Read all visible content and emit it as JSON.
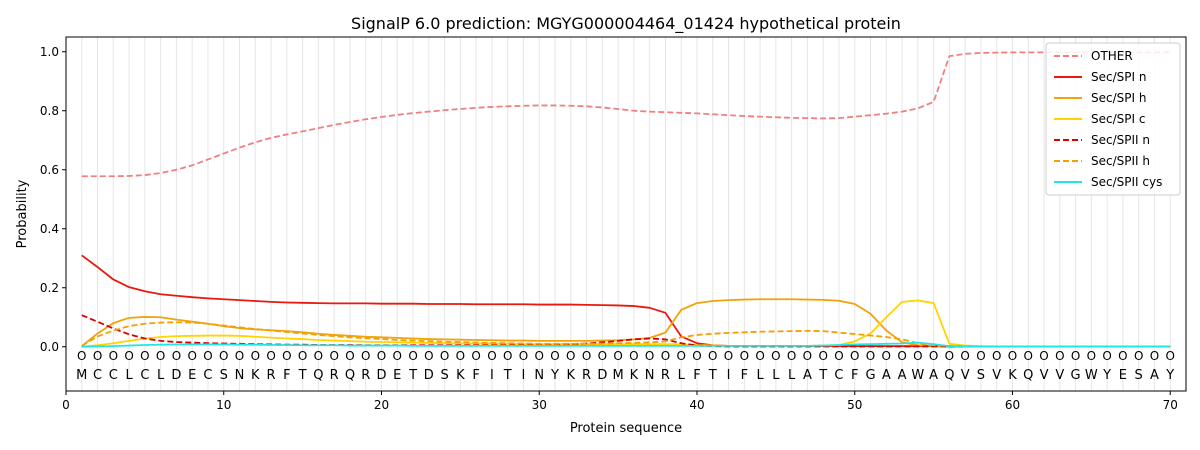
{
  "chart_data": {
    "type": "line",
    "title": "SignalP 6.0 prediction: MGYG000004464_01424 hypothetical protein",
    "xlabel": "Protein sequence",
    "ylabel": "Probability",
    "xlim": [
      0,
      71
    ],
    "ylim": [
      -0.15,
      1.05
    ],
    "x_ticks": [
      0,
      10,
      20,
      30,
      40,
      50,
      60,
      70
    ],
    "y_ticks": [
      0.0,
      0.2,
      0.4,
      0.6,
      0.8,
      1.0
    ],
    "x_tick_labels": [
      "0",
      "10",
      "20",
      "30",
      "40",
      "50",
      "60",
      "70"
    ],
    "y_tick_labels": [
      "0.0",
      "0.2",
      "0.4",
      "0.6",
      "0.8",
      "1.0"
    ],
    "grid": "vertical lines at each residue",
    "legend_position": "top-right",
    "sequence": [
      "M",
      "C",
      "C",
      "L",
      "C",
      "L",
      "D",
      "E",
      "C",
      "S",
      "N",
      "K",
      "R",
      "F",
      "T",
      "Q",
      "R",
      "Q",
      "R",
      "D",
      "E",
      "T",
      "D",
      "S",
      "K",
      "F",
      "I",
      "T",
      "I",
      "N",
      "Y",
      "K",
      "R",
      "D",
      "M",
      "K",
      "N",
      "R",
      "L",
      "F",
      "T",
      "I",
      "F",
      "L",
      "L",
      "L",
      "A",
      "T",
      "C",
      "F",
      "G",
      "A",
      "A",
      "W",
      "A",
      "Q",
      "V",
      "S",
      "V",
      "K",
      "Q",
      "V",
      "V",
      "G",
      "W",
      "Y",
      "E",
      "S",
      "A",
      "Y"
    ],
    "region_marker": "O",
    "series": [
      {
        "name": "OTHER",
        "color": "#f08080",
        "dash": "dashed",
        "values": [
          0.578,
          0.578,
          0.578,
          0.579,
          0.582,
          0.589,
          0.6,
          0.615,
          0.635,
          0.655,
          0.675,
          0.693,
          0.708,
          0.72,
          0.73,
          0.741,
          0.752,
          0.762,
          0.771,
          0.779,
          0.786,
          0.792,
          0.797,
          0.802,
          0.806,
          0.81,
          0.813,
          0.815,
          0.817,
          0.818,
          0.818,
          0.817,
          0.815,
          0.811,
          0.806,
          0.8,
          0.797,
          0.795,
          0.793,
          0.791,
          0.788,
          0.785,
          0.782,
          0.78,
          0.778,
          0.776,
          0.775,
          0.774,
          0.775,
          0.78,
          0.785,
          0.79,
          0.797,
          0.808,
          0.83,
          0.985,
          0.993,
          0.996,
          0.997,
          0.998,
          0.998,
          0.998,
          0.998,
          0.998,
          0.998,
          0.998,
          0.998,
          0.998,
          0.998,
          0.998
        ]
      },
      {
        "name": "Sec/SPI n",
        "color": "#e8190e",
        "dash": "solid",
        "values": [
          0.31,
          0.27,
          0.228,
          0.202,
          0.188,
          0.178,
          0.173,
          0.168,
          0.164,
          0.161,
          0.158,
          0.155,
          0.152,
          0.15,
          0.149,
          0.148,
          0.147,
          0.147,
          0.147,
          0.146,
          0.146,
          0.146,
          0.145,
          0.145,
          0.145,
          0.144,
          0.144,
          0.144,
          0.144,
          0.143,
          0.143,
          0.143,
          0.142,
          0.141,
          0.14,
          0.138,
          0.132,
          0.115,
          0.035,
          0.012,
          0.005,
          0.003,
          0.002,
          0.002,
          0.002,
          0.002,
          0.002,
          0.002,
          0.002,
          0.002,
          0.002,
          0.002,
          0.002,
          0.002,
          0.002,
          0.001,
          0.001,
          0.001,
          0.001,
          0.001,
          0.001,
          0.001,
          0.001,
          0.001,
          0.001,
          0.001,
          0.001,
          0.001,
          0.001,
          0.001
        ]
      },
      {
        "name": "Sec/SPI h",
        "color": "#f0a30a",
        "dash": "solid",
        "values": [
          0.002,
          0.045,
          0.08,
          0.098,
          0.101,
          0.1,
          0.092,
          0.085,
          0.078,
          0.07,
          0.063,
          0.059,
          0.056,
          0.053,
          0.049,
          0.044,
          0.04,
          0.037,
          0.034,
          0.032,
          0.03,
          0.028,
          0.026,
          0.025,
          0.024,
          0.023,
          0.022,
          0.021,
          0.021,
          0.02,
          0.02,
          0.02,
          0.02,
          0.021,
          0.022,
          0.025,
          0.03,
          0.048,
          0.125,
          0.148,
          0.155,
          0.158,
          0.16,
          0.161,
          0.161,
          0.161,
          0.16,
          0.159,
          0.156,
          0.145,
          0.112,
          0.055,
          0.015,
          0.005,
          0.003,
          0.002,
          0.001,
          0.001,
          0.001,
          0.001,
          0.001,
          0.001,
          0.001,
          0.001,
          0.001,
          0.001,
          0.001,
          0.001,
          0.001,
          0.001
        ]
      },
      {
        "name": "Sec/SPI c",
        "color": "#ffd400",
        "dash": "solid",
        "values": [
          0.001,
          0.005,
          0.012,
          0.02,
          0.028,
          0.033,
          0.036,
          0.037,
          0.038,
          0.038,
          0.037,
          0.034,
          0.031,
          0.028,
          0.026,
          0.023,
          0.021,
          0.019,
          0.017,
          0.016,
          0.015,
          0.014,
          0.013,
          0.012,
          0.011,
          0.011,
          0.01,
          0.01,
          0.009,
          0.009,
          0.009,
          0.009,
          0.009,
          0.009,
          0.009,
          0.009,
          0.009,
          0.009,
          0.008,
          0.006,
          0.004,
          0.003,
          0.002,
          0.002,
          0.002,
          0.002,
          0.003,
          0.004,
          0.006,
          0.018,
          0.045,
          0.1,
          0.152,
          0.157,
          0.148,
          0.01,
          0.004,
          0.002,
          0.001,
          0.001,
          0.001,
          0.001,
          0.001,
          0.001,
          0.001,
          0.001,
          0.001,
          0.001,
          0.001,
          0.001
        ]
      },
      {
        "name": "Sec/SPII n",
        "color": "#d90000",
        "dash": "dashed",
        "values": [
          0.107,
          0.085,
          0.062,
          0.042,
          0.028,
          0.02,
          0.016,
          0.014,
          0.012,
          0.011,
          0.01,
          0.009,
          0.008,
          0.007,
          0.007,
          0.006,
          0.006,
          0.006,
          0.005,
          0.005,
          0.005,
          0.005,
          0.005,
          0.005,
          0.005,
          0.005,
          0.005,
          0.005,
          0.005,
          0.005,
          0.006,
          0.008,
          0.011,
          0.015,
          0.02,
          0.025,
          0.028,
          0.025,
          0.012,
          0.004,
          0.002,
          0.001,
          0.001,
          0.001,
          0.001,
          0.001,
          0.001,
          0.001,
          0.001,
          0.001,
          0.001,
          0.001,
          0.001,
          0.001,
          0.001,
          0.001,
          0.001,
          0.001,
          0.001,
          0.001,
          0.001,
          0.001,
          0.001,
          0.001,
          0.001,
          0.001,
          0.001,
          0.001,
          0.001,
          0.001
        ]
      },
      {
        "name": "Sec/SPII h",
        "color": "#f5a000",
        "dash": "dashed",
        "values": [
          0.003,
          0.035,
          0.055,
          0.07,
          0.078,
          0.082,
          0.083,
          0.082,
          0.078,
          0.072,
          0.066,
          0.06,
          0.055,
          0.05,
          0.045,
          0.04,
          0.036,
          0.032,
          0.029,
          0.026,
          0.023,
          0.021,
          0.019,
          0.017,
          0.016,
          0.014,
          0.013,
          0.012,
          0.011,
          0.01,
          0.01,
          0.01,
          0.01,
          0.011,
          0.012,
          0.013,
          0.015,
          0.018,
          0.032,
          0.04,
          0.044,
          0.047,
          0.049,
          0.051,
          0.052,
          0.053,
          0.054,
          0.053,
          0.048,
          0.043,
          0.038,
          0.033,
          0.025,
          0.012,
          0.005,
          0.003,
          0.002,
          0.001,
          0.001,
          0.001,
          0.001,
          0.001,
          0.001,
          0.001,
          0.001,
          0.001,
          0.001,
          0.001,
          0.001,
          0.001
        ]
      },
      {
        "name": "Sec/SPII cys",
        "color": "#22e6e6",
        "dash": "solid",
        "values": [
          0.0,
          0.001,
          0.002,
          0.004,
          0.006,
          0.007,
          0.008,
          0.008,
          0.008,
          0.008,
          0.007,
          0.007,
          0.006,
          0.006,
          0.005,
          0.005,
          0.005,
          0.004,
          0.004,
          0.004,
          0.004,
          0.003,
          0.003,
          0.003,
          0.003,
          0.003,
          0.003,
          0.003,
          0.003,
          0.003,
          0.003,
          0.003,
          0.003,
          0.003,
          0.003,
          0.003,
          0.003,
          0.003,
          0.003,
          0.003,
          0.003,
          0.003,
          0.003,
          0.003,
          0.003,
          0.003,
          0.003,
          0.004,
          0.006,
          0.008,
          0.009,
          0.01,
          0.011,
          0.014,
          0.009,
          0.002,
          0.001,
          0.001,
          0.001,
          0.001,
          0.001,
          0.001,
          0.001,
          0.001,
          0.001,
          0.001,
          0.001,
          0.001,
          0.001,
          0.001
        ]
      }
    ]
  }
}
